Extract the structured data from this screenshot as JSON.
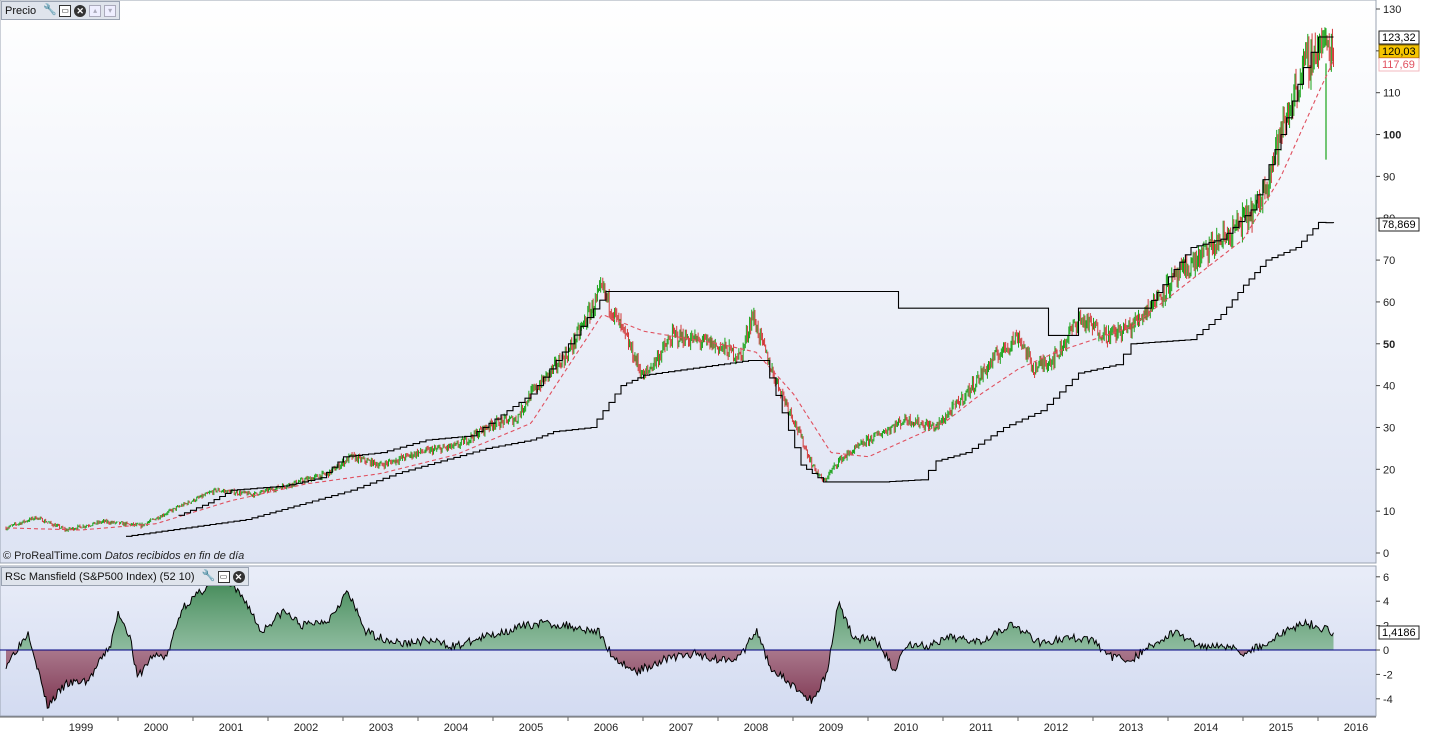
{
  "price_panel": {
    "title": "Precio",
    "watermark_brand": "© ProRealTime.com",
    "watermark_note": "Datos recibidos en fin de día",
    "badges": {
      "upper": "123,32",
      "last": "120,03",
      "ma": "117,69",
      "lower": "78,869"
    }
  },
  "indicator_panel": {
    "title": "RSc Mansfield (S&P500 Index) (52 10)",
    "last_value": "1,4186"
  },
  "colors": {
    "up_bar": "#19a319",
    "down_bar": "#d23a3a",
    "ma_line": "#e0505f",
    "channel": "#000000",
    "pos_fill": "#3e8a55",
    "neg_fill": "#8a3a55",
    "zero_line": "#000080",
    "badge_upper_bg": "#ffffff",
    "badge_last_bg": "#f5c400",
    "badge_ma_fg": "#e0505f"
  },
  "chart_data": [
    {
      "type": "candlestick",
      "x_axis_labels": [
        "1999",
        "2000",
        "2001",
        "2002",
        "2003",
        "2004",
        "2005",
        "2006",
        "2007",
        "2008",
        "2009",
        "2010",
        "2011",
        "2012",
        "2013",
        "2014",
        "2015",
        "2016"
      ],
      "y_tick_labels": [
        "0",
        "10",
        "20",
        "30",
        "40",
        "50",
        "60",
        "70",
        "80",
        "90",
        "100",
        "110",
        "120",
        "130"
      ],
      "ylim": [
        0,
        130
      ],
      "price_path": [
        [
          1998.0,
          6
        ],
        [
          1998.4,
          8.5
        ],
        [
          1998.8,
          5.5
        ],
        [
          1999.3,
          7.5
        ],
        [
          1999.8,
          6.5
        ],
        [
          2000.3,
          11
        ],
        [
          2000.8,
          15
        ],
        [
          2001.3,
          14
        ],
        [
          2001.8,
          16.5
        ],
        [
          2002.3,
          19
        ],
        [
          2002.6,
          23
        ],
        [
          2003.0,
          21
        ],
        [
          2003.5,
          24
        ],
        [
          2004.0,
          25.5
        ],
        [
          2004.5,
          31
        ],
        [
          2004.8,
          32
        ],
        [
          2005.0,
          38
        ],
        [
          2005.5,
          48
        ],
        [
          2005.95,
          63
        ],
        [
          2006.3,
          50
        ],
        [
          2006.5,
          42
        ],
        [
          2006.9,
          52
        ],
        [
          2007.4,
          50
        ],
        [
          2007.8,
          47
        ],
        [
          2007.95,
          57
        ],
        [
          2008.2,
          44
        ],
        [
          2008.5,
          32
        ],
        [
          2008.75,
          21
        ],
        [
          2008.9,
          17
        ],
        [
          2009.1,
          22
        ],
        [
          2009.5,
          27
        ],
        [
          2010.0,
          32
        ],
        [
          2010.4,
          30
        ],
        [
          2010.8,
          38
        ],
        [
          2011.2,
          47
        ],
        [
          2011.5,
          52
        ],
        [
          2011.7,
          44
        ],
        [
          2012.0,
          47
        ],
        [
          2012.3,
          56
        ],
        [
          2012.7,
          52
        ],
        [
          2013.0,
          54
        ],
        [
          2013.5,
          64
        ],
        [
          2014.0,
          72
        ],
        [
          2014.3,
          76
        ],
        [
          2014.7,
          83
        ],
        [
          2015.0,
          100
        ],
        [
          2015.3,
          116
        ],
        [
          2015.55,
          122
        ],
        [
          2015.7,
          120
        ]
      ],
      "ma_path": [
        [
          1998.0,
          6
        ],
        [
          1999.0,
          5.5
        ],
        [
          2000.0,
          7
        ],
        [
          2001.0,
          12.5
        ],
        [
          2002.0,
          16.5
        ],
        [
          2003.0,
          19
        ],
        [
          2004.0,
          23.5
        ],
        [
          2005.0,
          31
        ],
        [
          2005.95,
          57
        ],
        [
          2006.5,
          53
        ],
        [
          2007.0,
          51.5
        ],
        [
          2007.5,
          50
        ],
        [
          2008.0,
          48
        ],
        [
          2008.5,
          38
        ],
        [
          2009.0,
          24
        ],
        [
          2009.5,
          23
        ],
        [
          2010.0,
          27
        ],
        [
          2010.5,
          31
        ],
        [
          2011.0,
          38
        ],
        [
          2011.5,
          44
        ],
        [
          2012.0,
          48
        ],
        [
          2012.5,
          51
        ],
        [
          2013.0,
          54
        ],
        [
          2013.5,
          61
        ],
        [
          2014.0,
          68
        ],
        [
          2014.5,
          75
        ],
        [
          2015.0,
          90
        ],
        [
          2015.5,
          110
        ],
        [
          2015.7,
          117.69
        ]
      ],
      "upper_channel": [
        [
          2000.3,
          9
        ],
        [
          2000.7,
          12
        ],
        [
          2001.0,
          15
        ],
        [
          2001.7,
          16
        ],
        [
          2002.2,
          18
        ],
        [
          2002.5,
          23
        ],
        [
          2003.0,
          24
        ],
        [
          2003.6,
          27
        ],
        [
          2004.2,
          28
        ],
        [
          2004.6,
          33
        ],
        [
          2005.0,
          38
        ],
        [
          2005.5,
          50
        ],
        [
          2006.0,
          62.5
        ],
        [
          2008.0,
          62.5
        ],
        [
          2009.8,
          62.5
        ],
        [
          2009.9,
          58.5
        ],
        [
          2011.8,
          58.5
        ],
        [
          2011.9,
          52
        ],
        [
          2012.2,
          52
        ],
        [
          2012.3,
          58.5
        ],
        [
          2013.2,
          58.5
        ],
        [
          2013.5,
          66
        ],
        [
          2013.8,
          73
        ],
        [
          2014.2,
          75
        ],
        [
          2014.6,
          82
        ],
        [
          2015.0,
          100
        ],
        [
          2015.3,
          116
        ],
        [
          2015.5,
          123.32
        ],
        [
          2015.7,
          123.32
        ]
      ],
      "lower_channel": [
        [
          1999.6,
          4
        ],
        [
          2000.4,
          6
        ],
        [
          2001.2,
          8
        ],
        [
          2002.0,
          12
        ],
        [
          2002.6,
          15
        ],
        [
          2003.2,
          19
        ],
        [
          2003.8,
          22
        ],
        [
          2004.4,
          25
        ],
        [
          2005.0,
          27
        ],
        [
          2005.3,
          29
        ],
        [
          2005.8,
          30
        ],
        [
          2006.2,
          40
        ],
        [
          2006.5,
          42.5
        ],
        [
          2007.5,
          45
        ],
        [
          2007.9,
          46
        ],
        [
          2008.1,
          46
        ],
        [
          2008.6,
          21
        ],
        [
          2008.9,
          17
        ],
        [
          2009.7,
          17
        ],
        [
          2010.2,
          17.5
        ],
        [
          2010.4,
          22
        ],
        [
          2010.8,
          24
        ],
        [
          2011.3,
          30
        ],
        [
          2011.8,
          34
        ],
        [
          2012.3,
          43
        ],
        [
          2012.8,
          45
        ],
        [
          2013.0,
          50
        ],
        [
          2013.8,
          51
        ],
        [
          2014.2,
          57
        ],
        [
          2014.5,
          64
        ],
        [
          2014.8,
          70
        ],
        [
          2015.2,
          73
        ],
        [
          2015.5,
          79
        ],
        [
          2015.7,
          78.869
        ]
      ]
    },
    {
      "type": "area",
      "y_tick_labels": [
        "-4",
        "-2",
        "0",
        "2",
        "4",
        "6"
      ],
      "ylim": [
        -5,
        6.5
      ],
      "series_path": [
        [
          1998.0,
          -1.2
        ],
        [
          1998.3,
          1.5
        ],
        [
          1998.55,
          -4.6
        ],
        [
          1998.8,
          -2.8
        ],
        [
          1999.1,
          -2.5
        ],
        [
          1999.4,
          0.5
        ],
        [
          1999.5,
          3.1
        ],
        [
          1999.65,
          1.2
        ],
        [
          1999.75,
          -2.3
        ],
        [
          1999.95,
          -0.5
        ],
        [
          2000.15,
          -0.5
        ],
        [
          2000.35,
          3.5
        ],
        [
          2000.55,
          4.5
        ],
        [
          2000.85,
          6.2
        ],
        [
          2001.2,
          4.0
        ],
        [
          2001.4,
          1.5
        ],
        [
          2001.7,
          3.2
        ],
        [
          2001.95,
          2.0
        ],
        [
          2002.3,
          2.5
        ],
        [
          2002.55,
          4.8
        ],
        [
          2002.8,
          1.5
        ],
        [
          2003.0,
          1.0
        ],
        [
          2003.3,
          0.5
        ],
        [
          2003.6,
          0.8
        ],
        [
          2004.0,
          0.3
        ],
        [
          2004.4,
          1.1
        ],
        [
          2004.8,
          1.8
        ],
        [
          2005.1,
          2.2
        ],
        [
          2005.5,
          2.0
        ],
        [
          2005.9,
          1.5
        ],
        [
          2006.1,
          -0.6
        ],
        [
          2006.4,
          -1.8
        ],
        [
          2006.8,
          -0.7
        ],
        [
          2007.2,
          -0.3
        ],
        [
          2007.5,
          -0.8
        ],
        [
          2007.8,
          -0.5
        ],
        [
          2008.0,
          1.6
        ],
        [
          2008.2,
          -1.5
        ],
        [
          2008.5,
          -3.0
        ],
        [
          2008.75,
          -4.2
        ],
        [
          2008.95,
          -1.8
        ],
        [
          2009.1,
          4.0
        ],
        [
          2009.3,
          1.0
        ],
        [
          2009.6,
          0.8
        ],
        [
          2009.85,
          -1.7
        ],
        [
          2010.0,
          0.5
        ],
        [
          2010.3,
          0.3
        ],
        [
          2010.6,
          1.0
        ],
        [
          2011.0,
          0.8
        ],
        [
          2011.4,
          2.1
        ],
        [
          2011.8,
          0.6
        ],
        [
          2012.2,
          1.0
        ],
        [
          2012.5,
          0.8
        ],
        [
          2012.7,
          -0.5
        ],
        [
          2013.0,
          -0.8
        ],
        [
          2013.3,
          0.5
        ],
        [
          2013.6,
          1.5
        ],
        [
          2013.9,
          0.3
        ],
        [
          2014.2,
          0.5
        ],
        [
          2014.5,
          -0.2
        ],
        [
          2014.8,
          0.5
        ],
        [
          2015.0,
          1.3
        ],
        [
          2015.3,
          2.3
        ],
        [
          2015.55,
          1.8
        ],
        [
          2015.7,
          1.42
        ]
      ]
    }
  ]
}
